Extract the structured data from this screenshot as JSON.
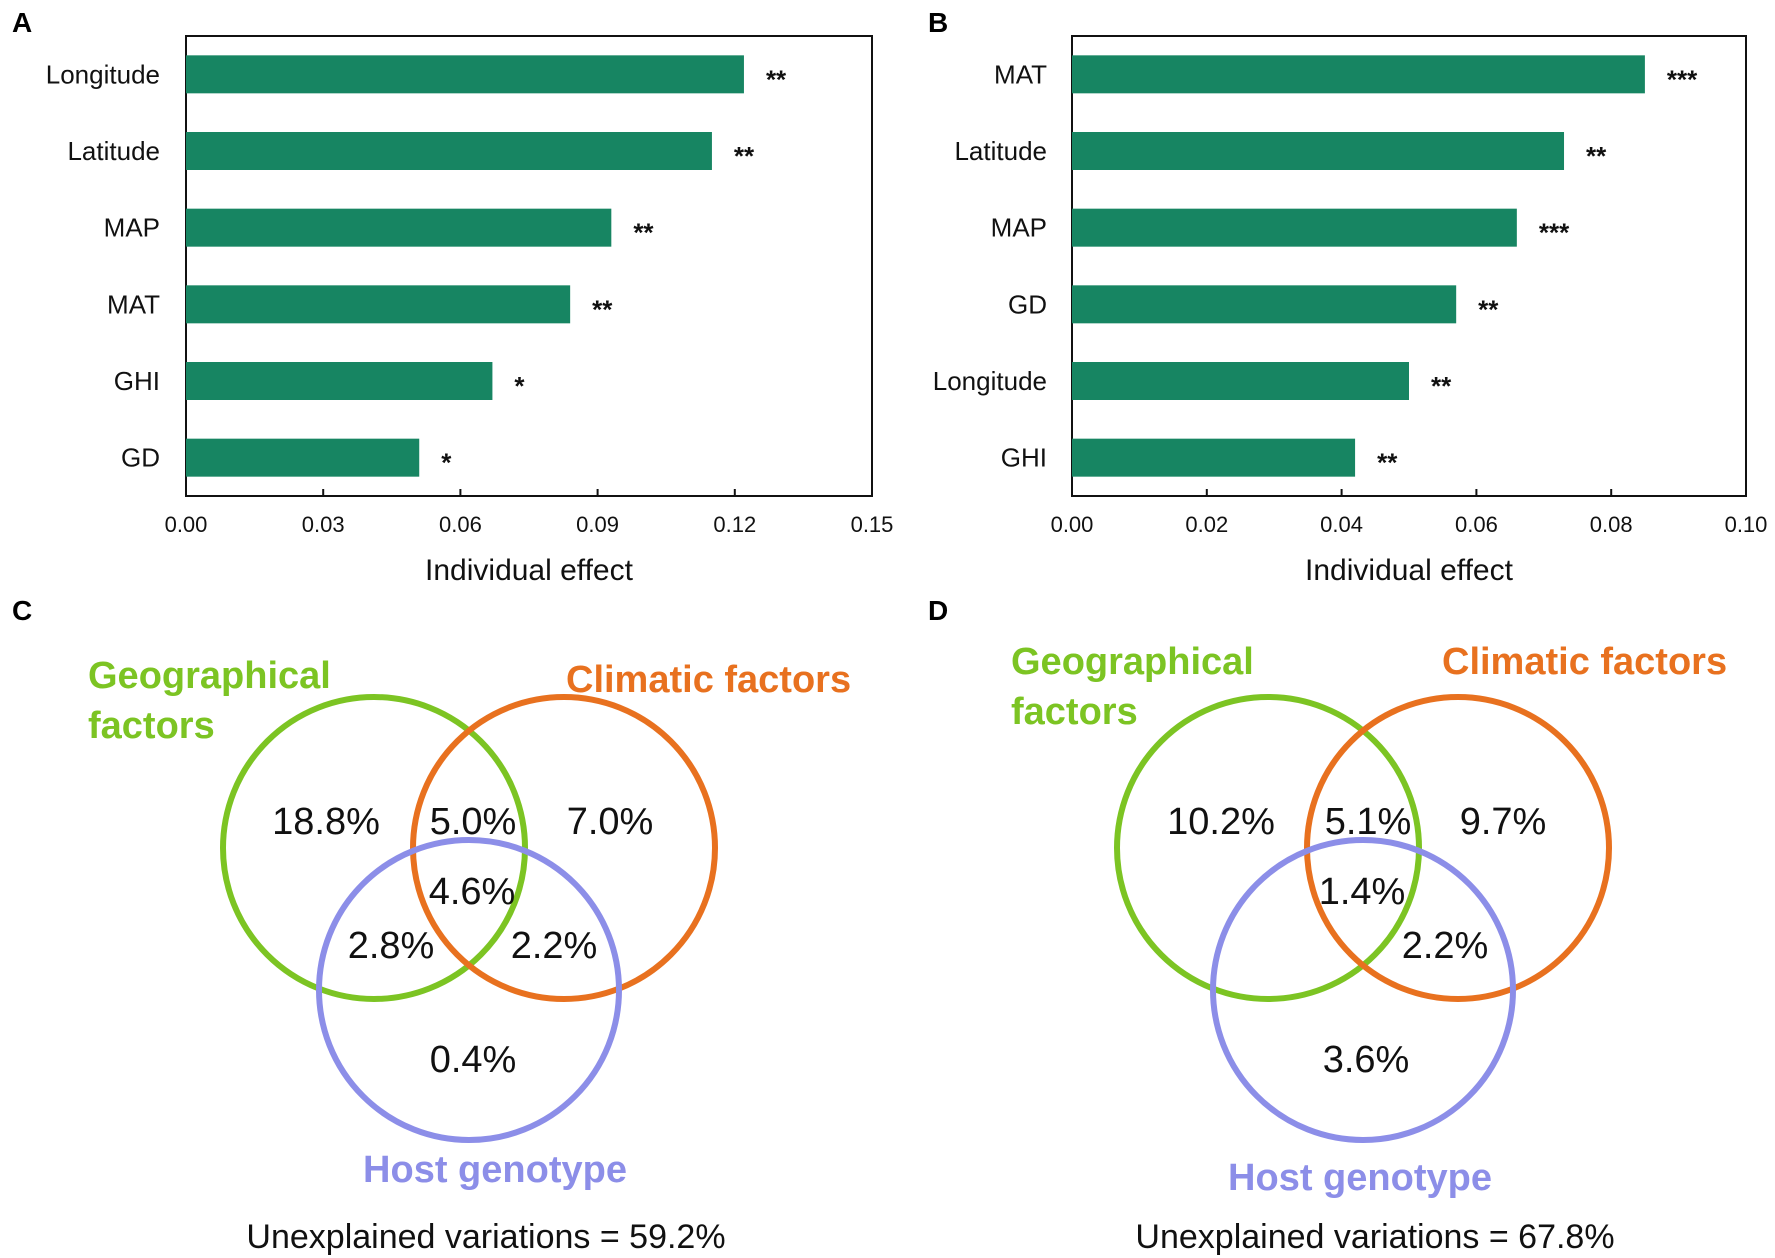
{
  "colors": {
    "bar": "#178562",
    "geo": "#7cc423",
    "clim": "#e8711f",
    "host": "#8c8ee8",
    "text": "#111111"
  },
  "chart_data": [
    {
      "type": "bar",
      "orientation": "horizontal",
      "panel": "A",
      "categories": [
        "Longitude",
        "Latitude",
        "MAP",
        "MAT",
        "GHI",
        "GD"
      ],
      "values": [
        0.122,
        0.115,
        0.093,
        0.084,
        0.067,
        0.051
      ],
      "significance": [
        "**",
        "**",
        "**",
        "**",
        "*",
        "*"
      ],
      "xlabel": "Individual effect",
      "xlim": [
        0,
        0.15
      ],
      "xticks": [
        "0.00",
        "0.03",
        "0.06",
        "0.09",
        "0.12",
        "0.15"
      ]
    },
    {
      "type": "bar",
      "orientation": "horizontal",
      "panel": "B",
      "categories": [
        "MAT",
        "Latitude",
        "MAP",
        "GD",
        "Longitude",
        "GHI"
      ],
      "values": [
        0.085,
        0.073,
        0.066,
        0.057,
        0.05,
        0.042
      ],
      "significance": [
        "***",
        "**",
        "***",
        "**",
        "**",
        "**"
      ],
      "xlabel": "Individual effect",
      "xlim": [
        0,
        0.1
      ],
      "xticks": [
        "0.00",
        "0.02",
        "0.04",
        "0.06",
        "0.08",
        "0.10"
      ]
    }
  ],
  "venn": [
    {
      "panel": "C",
      "geo_title": [
        "Geographical",
        "factors"
      ],
      "clim_title": "Climatic factors",
      "host_title": "Host genotype",
      "values": {
        "geo_only": "18.8%",
        "geo_clim": "5.0%",
        "clim_only": "7.0%",
        "all": "4.6%",
        "geo_host": "2.8%",
        "clim_host": "2.2%",
        "host_only": "0.4%"
      },
      "unexplained": "Unexplained variations = 59.2%"
    },
    {
      "panel": "D",
      "geo_title": [
        "Geographical",
        "factors"
      ],
      "clim_title": "Climatic factors",
      "host_title": "Host genotype",
      "values": {
        "geo_only": "10.2%",
        "geo_clim": "5.1%",
        "clim_only": "9.7%",
        "all": "1.4%",
        "clim_host": "2.2%",
        "host_only": "3.6%"
      },
      "unexplained": "Unexplained variations = 67.8%"
    }
  ]
}
